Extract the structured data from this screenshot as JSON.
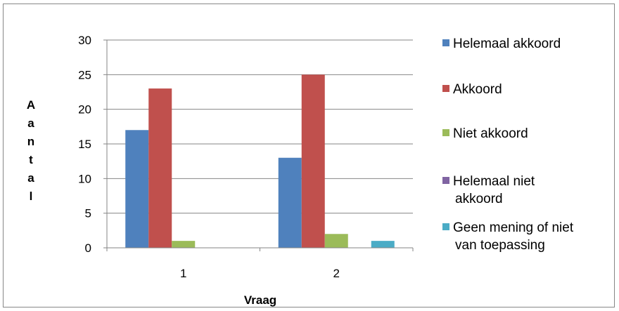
{
  "chart_data": {
    "type": "bar",
    "categories": [
      "1",
      "2"
    ],
    "series": [
      {
        "name": "Helemaal akkoord",
        "values": [
          17,
          13
        ],
        "color": "#4F81BD"
      },
      {
        "name": "Akkoord",
        "values": [
          23,
          25
        ],
        "color": "#C0504D"
      },
      {
        "name": "Niet akkoord",
        "values": [
          1,
          2
        ],
        "color": "#9BBB59"
      },
      {
        "name": "Helemaal niet akkoord",
        "values": [
          0,
          0
        ],
        "color": "#8064A2"
      },
      {
        "name": "Geen mening of niet van toepassing",
        "values": [
          0,
          1
        ],
        "color": "#4BACC6"
      }
    ],
    "title": "",
    "xlabel": "Vraag",
    "ylabel": "Aantal",
    "ylim": [
      0,
      30
    ],
    "yticks": [
      0,
      5,
      10,
      15,
      20,
      25,
      30
    ],
    "grid": true,
    "legend_position": "right",
    "legend_labels": [
      [
        "Helemaal akkoord"
      ],
      [
        "Akkoord"
      ],
      [
        "Niet akkoord"
      ],
      [
        "Helemaal niet",
        "akkoord"
      ],
      [
        "Geen mening of niet",
        "van toepassing"
      ]
    ]
  }
}
